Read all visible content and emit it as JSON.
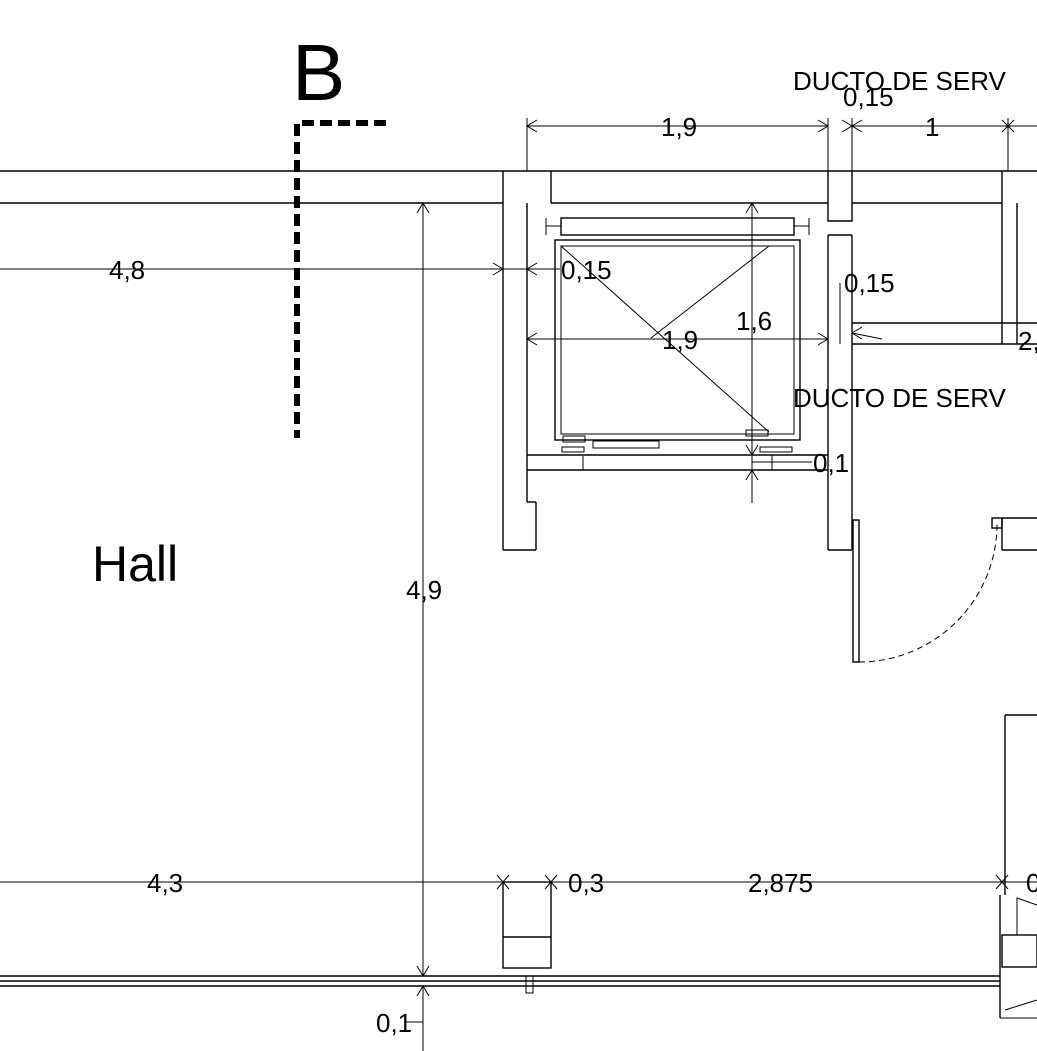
{
  "section_marker": "B",
  "room_label": "Hall",
  "duct_label_top": "DUCTO DE SERV",
  "duct_label_mid": "DUCTO DE SERV",
  "dimensions": {
    "d_top_19": "1,9",
    "d_top_015": "0,15",
    "d_top_1": "1",
    "d_left_48": "4,8",
    "d_shaft_015": "0,15",
    "d_wall_015": "0,15",
    "d_cut_2": "2,",
    "d_cab_19": "1,9",
    "d_cab_16": "1,6",
    "d_cab_01": "0,1",
    "d_vert_49": "4,9",
    "d_bot_43": "4,3",
    "d_bot_03": "0,3",
    "d_bot_2875": "2,875",
    "d_bot_0": "0",
    "d_bot_01": "0,1"
  }
}
